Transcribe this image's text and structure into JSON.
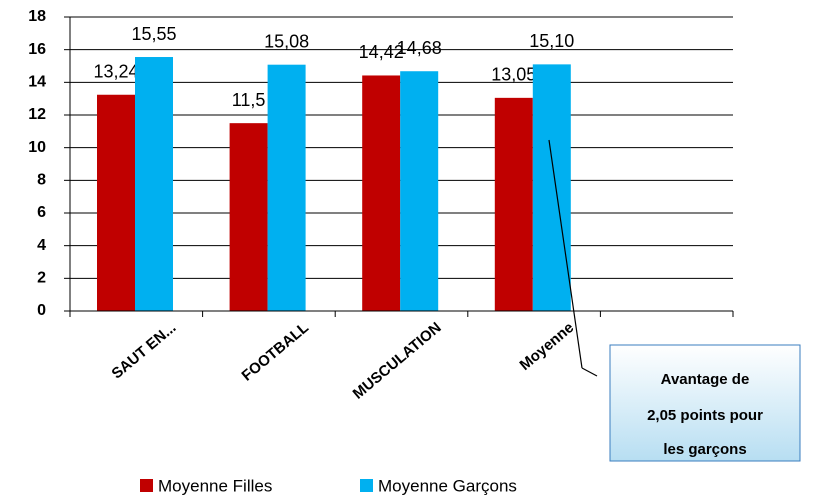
{
  "chart_data": {
    "type": "bar",
    "categories": [
      "SAUT EN...",
      "FOOTBALL",
      "MUSCULATION",
      "Moyenne",
      null
    ],
    "series": [
      {
        "name": "Moyenne Filles",
        "color": "#c00000",
        "values": [
          13.24,
          11.5,
          14.42,
          13.05,
          null
        ],
        "value_labels": [
          "13,24",
          "11,5",
          "14,42",
          "13,05",
          null
        ]
      },
      {
        "name": "Moyenne Garçons",
        "color": "#00b0f0",
        "values": [
          15.55,
          15.08,
          14.68,
          15.1,
          null
        ],
        "value_labels": [
          "15,55",
          "15,08",
          "14,68",
          "15,10",
          null
        ]
      }
    ],
    "ylim": [
      0,
      18
    ],
    "yticks": [
      0,
      2,
      4,
      6,
      8,
      10,
      12,
      14,
      16,
      18
    ],
    "grid": true,
    "annotation": [
      "Avantage de",
      "2,05 points pour",
      "les garçons"
    ]
  }
}
